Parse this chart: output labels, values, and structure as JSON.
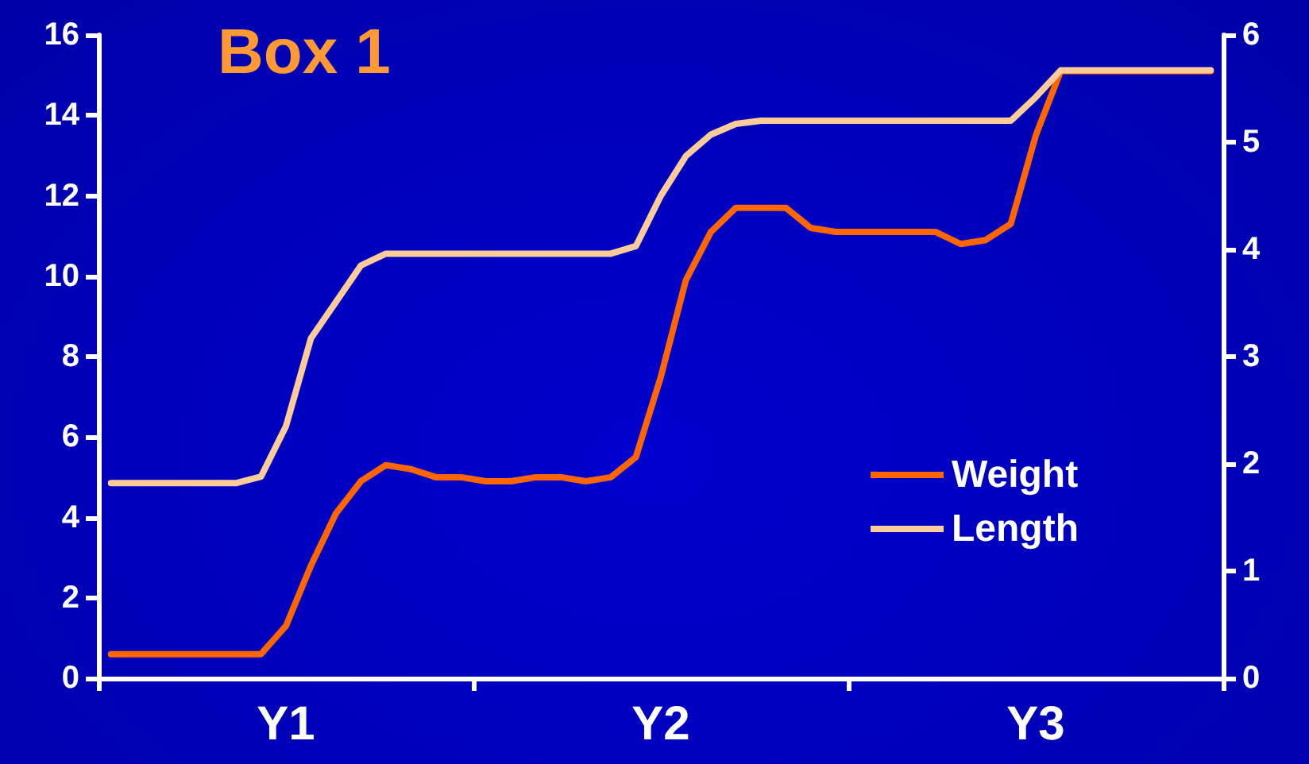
{
  "chart_data": {
    "type": "line",
    "title": "Box 1",
    "marker": "none",
    "line_style": "solid",
    "grid": false,
    "legend": "bottom right",
    "categories": [
      null,
      null,
      null,
      null,
      null,
      null,
      null,
      "Y1",
      null,
      null,
      null,
      null,
      null,
      null,
      null,
      null,
      null,
      null,
      null,
      null,
      null,
      null,
      "Y2",
      null,
      null,
      null,
      null,
      null,
      null,
      null,
      null,
      null,
      null,
      null,
      null,
      null,
      null,
      "Y3",
      null,
      null,
      null,
      null,
      null,
      null,
      null
    ],
    "ylim": [
      0,
      16
    ],
    "yticks": [
      0,
      2,
      4,
      6,
      8,
      10,
      12,
      14,
      16
    ],
    "y2lim": [
      0,
      6
    ],
    "y2ticks": [
      0,
      1,
      2,
      3,
      4,
      5,
      6
    ],
    "series": [
      {
        "name": "Weight",
        "color": "#ff6600",
        "values": [
          0.6,
          0.6,
          0.6,
          0.6,
          0.6,
          0.6,
          0.6,
          1.3,
          2.8,
          4.1,
          4.9,
          5.3,
          5.2,
          5.0,
          5.0,
          4.9,
          4.9,
          5.0,
          5.0,
          4.9,
          5.0,
          5.5,
          7.5,
          9.9,
          11.1,
          11.7,
          11.7,
          11.7,
          11.2,
          11.1,
          11.1,
          11.1,
          11.1,
          11.1,
          10.8,
          10.9,
          11.3,
          13.5,
          15.1,
          15.1,
          15.1,
          15.1,
          15.1,
          15.1,
          15.1
        ]
      },
      {
        "name": "Length",
        "color": "#ffcc99",
        "axis": "y2",
        "values": [
          1.82,
          1.82,
          1.82,
          1.82,
          1.82,
          1.82,
          1.88,
          2.35,
          3.17,
          3.51,
          3.85,
          3.96,
          3.96,
          3.96,
          3.96,
          3.96,
          3.96,
          3.96,
          3.96,
          3.96,
          3.96,
          4.03,
          4.5,
          4.87,
          5.07,
          5.17,
          5.2,
          5.2,
          5.2,
          5.2,
          5.2,
          5.2,
          5.2,
          5.2,
          5.2,
          5.2,
          5.2,
          5.42,
          5.67,
          5.67,
          5.67,
          5.67,
          5.67,
          5.67,
          5.67
        ]
      }
    ]
  }
}
